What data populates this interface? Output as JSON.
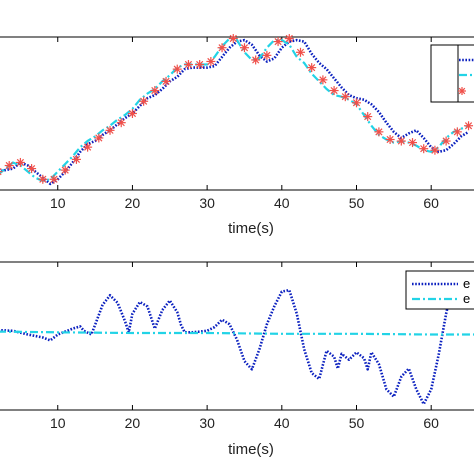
{
  "chart_data": [
    {
      "type": "line",
      "xlabel": "time(s)",
      "xlim": [
        2,
        66
      ],
      "ylim": [
        0,
        100
      ],
      "x_ticks": [
        "10",
        "20",
        "30",
        "40",
        "50",
        "60"
      ],
      "legend": {
        "position": "top-right",
        "entries": [
          "",
          "",
          ""
        ]
      },
      "series": [
        {
          "style": "dotted",
          "color": "#0a1fbf",
          "points": [
            [
              2,
              12
            ],
            [
              4,
              14
            ],
            [
              5,
              18
            ],
            [
              6,
              16
            ],
            [
              7,
              12
            ],
            [
              8,
              8
            ],
            [
              9,
              4
            ],
            [
              10,
              7
            ],
            [
              11,
              12
            ],
            [
              12,
              18
            ],
            [
              13,
              25
            ],
            [
              14,
              30
            ],
            [
              15,
              32
            ],
            [
              16,
              36
            ],
            [
              17,
              39
            ],
            [
              18,
              43
            ],
            [
              19,
              47
            ],
            [
              20,
              50
            ],
            [
              21,
              55
            ],
            [
              22,
              60
            ],
            [
              23,
              62
            ],
            [
              24,
              66
            ],
            [
              25,
              71
            ],
            [
              26,
              74
            ],
            [
              27,
              79
            ],
            [
              28,
              80
            ],
            [
              29,
              80
            ],
            [
              30,
              80
            ],
            [
              31,
              81
            ],
            [
              32,
              87
            ],
            [
              33,
              93
            ],
            [
              34,
              97
            ],
            [
              35,
              98
            ],
            [
              36,
              95
            ],
            [
              37,
              88
            ],
            [
              38,
              84
            ],
            [
              39,
              86
            ],
            [
              40,
              93
            ],
            [
              41,
              97
            ],
            [
              42,
              98
            ],
            [
              43,
              97
            ],
            [
              44,
              89
            ],
            [
              45,
              83
            ],
            [
              46,
              79
            ],
            [
              47,
              73
            ],
            [
              48,
              67
            ],
            [
              49,
              62
            ],
            [
              50,
              60
            ],
            [
              51,
              59
            ],
            [
              52,
              56
            ],
            [
              53,
              51
            ],
            [
              54,
              44
            ],
            [
              55,
              38
            ],
            [
              56,
              34
            ],
            [
              57,
              37
            ],
            [
              58,
              39
            ],
            [
              59,
              34
            ],
            [
              60,
              28
            ],
            [
              61,
              25
            ],
            [
              62,
              26
            ],
            [
              63,
              30
            ],
            [
              64,
              35
            ],
            [
              65,
              38
            ]
          ]
        },
        {
          "style": "dashdot",
          "color": "#22d3e6",
          "points": [
            [
              2,
              10
            ],
            [
              3,
              14
            ],
            [
              4,
              18
            ],
            [
              5,
              16
            ],
            [
              6,
              12
            ],
            [
              7,
              8
            ],
            [
              8,
              6
            ],
            [
              9,
              7
            ],
            [
              10,
              12
            ],
            [
              11,
              17
            ],
            [
              12,
              22
            ],
            [
              13,
              28
            ],
            [
              14,
              32
            ],
            [
              15,
              35
            ],
            [
              16,
              39
            ],
            [
              17,
              42
            ],
            [
              18,
              46
            ],
            [
              19,
              49
            ],
            [
              20,
              53
            ],
            [
              21,
              59
            ],
            [
              22,
              63
            ],
            [
              23,
              66
            ],
            [
              24,
              71
            ],
            [
              25,
              75
            ],
            [
              26,
              80
            ],
            [
              27,
              82
            ],
            [
              28,
              82
            ],
            [
              29,
              82
            ],
            [
              30,
              82
            ],
            [
              31,
              87
            ],
            [
              32,
              94
            ],
            [
              33,
              99
            ],
            [
              34,
              98
            ],
            [
              35,
              90
            ],
            [
              36,
              85
            ],
            [
              37,
              86
            ],
            [
              38,
              93
            ],
            [
              39,
              98
            ],
            [
              40,
              98
            ],
            [
              41,
              95
            ],
            [
              42,
              87
            ],
            [
              43,
              83
            ],
            [
              44,
              76
            ],
            [
              45,
              71
            ],
            [
              46,
              66
            ],
            [
              47,
              62
            ],
            [
              48,
              61
            ],
            [
              49,
              59
            ],
            [
              50,
              56
            ],
            [
              51,
              49
            ],
            [
              52,
              42
            ],
            [
              53,
              36
            ],
            [
              54,
              33
            ],
            [
              55,
              31
            ],
            [
              56,
              32
            ],
            [
              57,
              31
            ],
            [
              58,
              29
            ],
            [
              59,
              26
            ],
            [
              60,
              25
            ],
            [
              61,
              28
            ],
            [
              62,
              34
            ],
            [
              63,
              38
            ],
            [
              64,
              40
            ],
            [
              65,
              42
            ]
          ]
        },
        {
          "style": "markers-star",
          "color": "#f0504a",
          "points": [
            [
              2,
              12
            ],
            [
              3.5,
              16
            ],
            [
              5,
              18
            ],
            [
              6.5,
              14
            ],
            [
              8,
              7
            ],
            [
              9.5,
              7
            ],
            [
              11,
              13
            ],
            [
              12.5,
              20
            ],
            [
              14,
              28
            ],
            [
              15.5,
              34
            ],
            [
              17,
              39
            ],
            [
              18.5,
              44
            ],
            [
              20,
              50
            ],
            [
              21.5,
              58
            ],
            [
              23,
              65
            ],
            [
              24.5,
              71
            ],
            [
              26,
              79
            ],
            [
              27.5,
              82
            ],
            [
              29,
              82
            ],
            [
              30.5,
              84
            ],
            [
              32,
              93
            ],
            [
              33.5,
              99
            ],
            [
              35,
              93
            ],
            [
              36.5,
              85
            ],
            [
              38,
              88
            ],
            [
              39.5,
              97
            ],
            [
              41,
              99
            ],
            [
              42.5,
              90
            ],
            [
              44,
              80
            ],
            [
              45.5,
              72
            ],
            [
              47,
              65
            ],
            [
              48.5,
              61
            ],
            [
              50,
              57
            ],
            [
              51.5,
              48
            ],
            [
              53,
              38
            ],
            [
              54.5,
              33
            ],
            [
              56,
              32
            ],
            [
              57.5,
              31
            ],
            [
              59,
              27
            ],
            [
              60.5,
              26
            ],
            [
              62,
              32
            ],
            [
              63.5,
              38
            ],
            [
              65,
              42
            ]
          ]
        }
      ]
    },
    {
      "type": "line",
      "xlabel": "time(s)",
      "xlim": [
        2,
        66
      ],
      "ylim": [
        -1,
        1
      ],
      "x_ticks": [
        "10",
        "20",
        "30",
        "40",
        "50",
        "60"
      ],
      "legend": {
        "position": "top-right",
        "entries": [
          "e",
          "e"
        ]
      },
      "series": [
        {
          "name": "e",
          "style": "dotted",
          "color": "#0a1fbf",
          "points": [
            [
              2,
              0.08
            ],
            [
              4,
              0.07
            ],
            [
              6,
              0.02
            ],
            [
              8,
              -0.02
            ],
            [
              9,
              -0.06
            ],
            [
              10,
              0.02
            ],
            [
              11,
              0.06
            ],
            [
              12,
              0.1
            ],
            [
              13,
              0.13
            ],
            [
              13.5,
              0.07
            ],
            [
              14.5,
              0.02
            ],
            [
              15,
              0.15
            ],
            [
              16,
              0.42
            ],
            [
              17,
              0.55
            ],
            [
              18,
              0.45
            ],
            [
              19,
              0.2
            ],
            [
              19.5,
              0.05
            ],
            [
              20,
              0.3
            ],
            [
              21,
              0.46
            ],
            [
              22,
              0.4
            ],
            [
              23,
              0.1
            ],
            [
              24,
              0.35
            ],
            [
              25,
              0.48
            ],
            [
              26,
              0.32
            ],
            [
              26.5,
              0.15
            ],
            [
              27,
              0.05
            ],
            [
              28,
              0.05
            ],
            [
              29,
              0.06
            ],
            [
              30,
              0.07
            ],
            [
              31,
              0.12
            ],
            [
              32,
              0.22
            ],
            [
              33,
              0.16
            ],
            [
              34,
              -0.05
            ],
            [
              35,
              -0.34
            ],
            [
              36,
              -0.45
            ],
            [
              37,
              -0.18
            ],
            [
              38,
              0.16
            ],
            [
              39,
              0.4
            ],
            [
              40,
              0.6
            ],
            [
              41,
              0.62
            ],
            [
              42,
              0.3
            ],
            [
              43,
              -0.18
            ],
            [
              44,
              -0.5
            ],
            [
              45,
              -0.58
            ],
            [
              46,
              -0.2
            ],
            [
              47,
              -0.28
            ],
            [
              47.5,
              -0.44
            ],
            [
              48,
              -0.24
            ],
            [
              49,
              -0.32
            ],
            [
              50,
              -0.22
            ],
            [
              51,
              -0.3
            ],
            [
              51.5,
              -0.45
            ],
            [
              52,
              -0.22
            ],
            [
              53,
              -0.38
            ],
            [
              54,
              -0.72
            ],
            [
              55,
              -0.82
            ],
            [
              56,
              -0.55
            ],
            [
              57,
              -0.44
            ],
            [
              58,
              -0.72
            ],
            [
              59,
              -0.92
            ],
            [
              60,
              -0.72
            ],
            [
              61,
              -0.25
            ],
            [
              62,
              0.3
            ],
            [
              63,
              0.75
            ]
          ]
        },
        {
          "name": "e",
          "style": "dashdot",
          "color": "#22d3e6",
          "points": [
            [
              2,
              0.06
            ],
            [
              10,
              0.05
            ],
            [
              20,
              0.04
            ],
            [
              30,
              0.04
            ],
            [
              40,
              0.03
            ],
            [
              50,
              0.03
            ],
            [
              60,
              0.02
            ],
            [
              66,
              0.02
            ]
          ]
        }
      ]
    }
  ]
}
